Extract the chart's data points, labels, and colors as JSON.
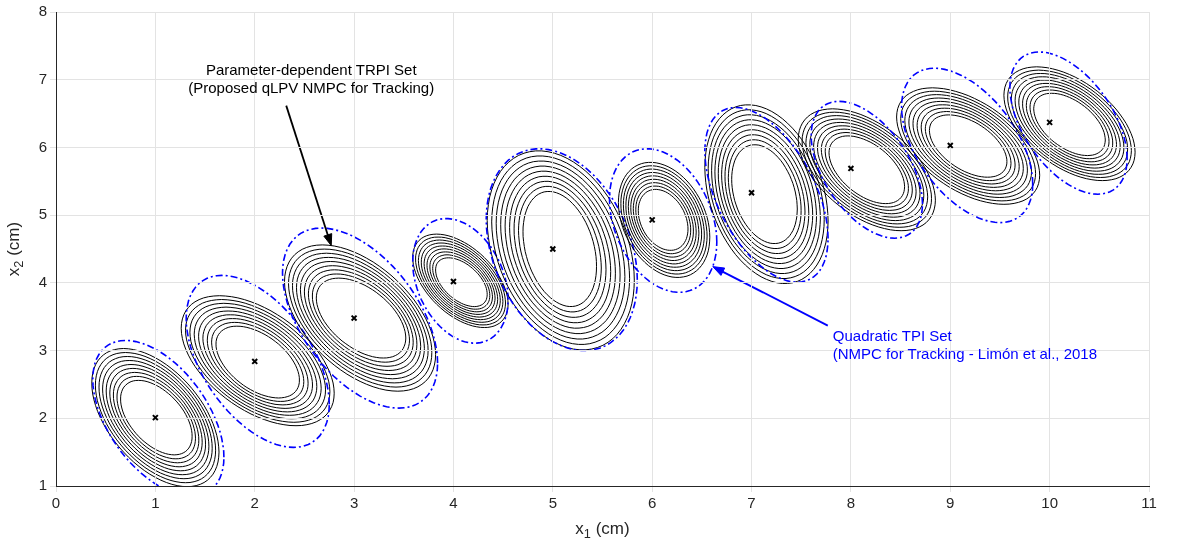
{
  "chart_data": {
    "type": "scatter",
    "xlabel": "x$_{1}$ (cm)",
    "ylabel": "x$_{2}$ (cm)",
    "xlim": [
      0,
      11
    ],
    "xticks": [
      0,
      1,
      2,
      3,
      4,
      5,
      6,
      7,
      8,
      9,
      10,
      11
    ],
    "ylim": [
      1,
      8
    ],
    "yticks": [
      1,
      2,
      3,
      4,
      5,
      6,
      7,
      8
    ],
    "grid": true,
    "legend": false,
    "annotations": [
      "Parameter-dependent TRPI Set\n(Proposed qLPV NMPC for Tracking)",
      "Quadratic TPI Set\n(NMPC for Tracking - Limón et al., 2018"
    ],
    "series": [
      {
        "color": "#000000",
        "marker": "cross",
        "x": [
          1,
          2,
          3,
          4,
          5,
          6,
          7,
          8,
          9,
          10
        ],
        "values": [
          2.01,
          2.84,
          3.48,
          4.02,
          4.5,
          4.93,
          5.33,
          5.69,
          6.03,
          6.37
        ]
      }
    ]
  }
}
